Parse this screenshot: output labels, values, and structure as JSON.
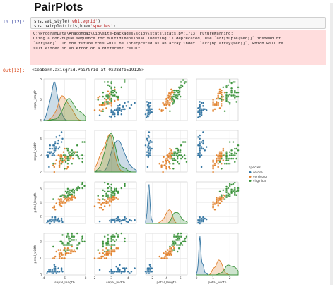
{
  "page": {
    "heading": "PairPlots"
  },
  "input_cell": {
    "prompt": "In [12]:",
    "lines": [
      {
        "pre": "sns.set_style(",
        "str": "'whitegrid'",
        "post": ")"
      },
      {
        "pre": "sns.pairplot(iris,hue=",
        "str": "'species'",
        "post": ")"
      }
    ]
  },
  "stderr": {
    "lines": [
      "C:\\ProgramData\\Anaconda3\\lib\\site-packages\\scipy\\stats\\stats.py:1713: FutureWarning:",
      "",
      "Using a non-tuple sequence for multidimensional indexing is deprecated; use `arr[tuple(seq)]` instead of",
      "`arr[seq]`. In the future this will be interpreted as an array index, `arr[np.array(seq)]`, which will re",
      "sult either in an error or a different result."
    ]
  },
  "output_cell": {
    "prompt": "Out[12]:",
    "repr": "<seaborn.axisgrid.PairGrid at 0x288fb519128>"
  },
  "colors": {
    "setosa": "#3274a1",
    "versicolor": "#e1812c",
    "virginica": "#3a923a",
    "grid": "#e6e6e6",
    "prompt_in": "#303f9f",
    "prompt_out": "#d84315",
    "stderr_bg": "#ffdddd"
  },
  "chart_data": {
    "type": "scatter",
    "variables": [
      "sepal_length",
      "sepal_width",
      "petal_length",
      "petal_width"
    ],
    "axis_labels": {
      "sepal_length": "sepal_length",
      "sepal_width": "sepal_width",
      "petal_length": "petal_length",
      "petal_width": "petal_width"
    },
    "ranges": {
      "sepal_length": [
        4,
        8
      ],
      "sepal_width": [
        2,
        4.5
      ],
      "petal_length": [
        1,
        7
      ],
      "petal_width": [
        0,
        2.5
      ]
    },
    "ticks": {
      "sepal_length": [
        "4",
        "6",
        "8"
      ],
      "sepal_width": [
        "2",
        "3",
        "4"
      ],
      "petal_length": [
        "2",
        "4",
        "6"
      ],
      "petal_width": [
        "0",
        "1",
        "2"
      ]
    },
    "diagonal": "kde",
    "grid": true,
    "legend": {
      "title": "species",
      "placement": "right",
      "entries": [
        "setosa",
        "versicolor",
        "virginica"
      ]
    },
    "series": [
      {
        "name": "setosa",
        "sepal_length": [
          5.1,
          4.9,
          4.7,
          4.6,
          5.0,
          5.4,
          4.6,
          5.0,
          4.4,
          4.9,
          5.4,
          4.8,
          4.8,
          4.3,
          5.8,
          5.7,
          5.4,
          5.1,
          5.7,
          5.1,
          5.4,
          5.1,
          4.6,
          5.1,
          4.8,
          5.0,
          5.0,
          5.2,
          5.2,
          4.7,
          4.8,
          5.4,
          5.2,
          5.5,
          4.9,
          5.0,
          5.5,
          4.9,
          4.4,
          5.1,
          5.0,
          4.5,
          4.4,
          5.0,
          5.1,
          4.8,
          5.1,
          4.6,
          5.3,
          5.0
        ],
        "sepal_width": [
          3.5,
          3.0,
          3.2,
          3.1,
          3.6,
          3.9,
          3.4,
          3.4,
          2.9,
          3.1,
          3.7,
          3.4,
          3.0,
          3.0,
          4.0,
          4.4,
          3.9,
          3.5,
          3.8,
          3.8,
          3.4,
          3.7,
          3.6,
          3.3,
          3.4,
          3.0,
          3.4,
          3.5,
          3.4,
          3.2,
          3.1,
          3.4,
          4.1,
          4.2,
          3.1,
          3.2,
          3.5,
          3.6,
          3.0,
          3.4,
          3.5,
          2.3,
          3.2,
          3.5,
          3.8,
          3.0,
          3.8,
          3.2,
          3.7,
          3.3
        ],
        "petal_length": [
          1.4,
          1.4,
          1.3,
          1.5,
          1.4,
          1.7,
          1.4,
          1.5,
          1.4,
          1.5,
          1.5,
          1.6,
          1.4,
          1.1,
          1.2,
          1.5,
          1.3,
          1.4,
          1.7,
          1.5,
          1.7,
          1.5,
          1.0,
          1.7,
          1.9,
          1.6,
          1.6,
          1.5,
          1.4,
          1.6,
          1.6,
          1.5,
          1.5,
          1.4,
          1.5,
          1.2,
          1.3,
          1.4,
          1.3,
          1.5,
          1.3,
          1.3,
          1.3,
          1.6,
          1.9,
          1.4,
          1.6,
          1.4,
          1.5,
          1.4
        ],
        "petal_width": [
          0.2,
          0.2,
          0.2,
          0.2,
          0.2,
          0.4,
          0.3,
          0.2,
          0.2,
          0.1,
          0.2,
          0.2,
          0.1,
          0.1,
          0.2,
          0.4,
          0.4,
          0.3,
          0.3,
          0.3,
          0.2,
          0.4,
          0.2,
          0.5,
          0.2,
          0.2,
          0.4,
          0.2,
          0.2,
          0.2,
          0.2,
          0.4,
          0.1,
          0.2,
          0.2,
          0.2,
          0.2,
          0.1,
          0.2,
          0.2,
          0.3,
          0.3,
          0.2,
          0.6,
          0.4,
          0.3,
          0.2,
          0.2,
          0.2,
          0.2
        ]
      },
      {
        "name": "versicolor",
        "sepal_length": [
          7.0,
          6.4,
          6.9,
          5.5,
          6.5,
          5.7,
          6.3,
          4.9,
          6.6,
          5.2,
          5.0,
          5.9,
          6.0,
          6.1,
          5.6,
          6.7,
          5.6,
          5.8,
          6.2,
          5.6,
          5.9,
          6.1,
          6.3,
          6.1,
          6.4,
          6.6,
          6.8,
          6.7,
          6.0,
          5.7,
          5.5,
          5.5,
          5.8,
          6.0,
          5.4,
          6.0,
          6.7,
          6.3,
          5.6,
          5.5,
          5.5,
          6.1,
          5.8,
          5.0,
          5.6,
          5.7,
          5.7,
          6.2,
          5.1,
          5.7
        ],
        "sepal_width": [
          3.2,
          3.2,
          3.1,
          2.3,
          2.8,
          2.8,
          3.3,
          2.4,
          2.9,
          2.7,
          2.0,
          3.0,
          2.2,
          2.9,
          2.9,
          3.1,
          3.0,
          2.7,
          2.2,
          2.5,
          3.2,
          2.8,
          2.5,
          2.8,
          2.9,
          3.0,
          2.8,
          3.0,
          2.9,
          2.6,
          2.4,
          2.4,
          2.7,
          2.7,
          3.0,
          3.4,
          3.1,
          2.3,
          3.0,
          2.5,
          2.6,
          3.0,
          2.6,
          2.3,
          2.7,
          3.0,
          2.9,
          2.9,
          2.5,
          2.8
        ],
        "petal_length": [
          4.7,
          4.5,
          4.9,
          4.0,
          4.6,
          4.5,
          4.7,
          3.3,
          4.6,
          3.9,
          3.5,
          4.2,
          4.0,
          4.7,
          3.6,
          4.4,
          4.5,
          4.1,
          4.5,
          3.9,
          4.8,
          4.0,
          4.9,
          4.7,
          4.3,
          4.4,
          4.8,
          5.0,
          4.5,
          3.5,
          3.8,
          3.7,
          3.9,
          5.1,
          4.5,
          4.5,
          4.7,
          4.4,
          4.1,
          4.0,
          4.4,
          4.6,
          4.0,
          3.3,
          4.2,
          4.2,
          4.2,
          4.3,
          3.0,
          4.1
        ],
        "petal_width": [
          1.4,
          1.5,
          1.5,
          1.3,
          1.5,
          1.3,
          1.6,
          1.0,
          1.3,
          1.4,
          1.0,
          1.5,
          1.0,
          1.4,
          1.3,
          1.4,
          1.5,
          1.0,
          1.5,
          1.1,
          1.8,
          1.3,
          1.5,
          1.2,
          1.3,
          1.4,
          1.4,
          1.7,
          1.5,
          1.0,
          1.1,
          1.0,
          1.2,
          1.6,
          1.5,
          1.6,
          1.5,
          1.3,
          1.3,
          1.3,
          1.2,
          1.4,
          1.2,
          1.0,
          1.3,
          1.2,
          1.3,
          1.3,
          1.1,
          1.3
        ]
      },
      {
        "name": "virginica",
        "sepal_length": [
          6.3,
          5.8,
          7.1,
          6.3,
          6.5,
          7.6,
          4.9,
          7.3,
          6.7,
          7.2,
          6.5,
          6.4,
          6.8,
          5.7,
          5.8,
          6.4,
          6.5,
          7.7,
          7.7,
          6.0,
          6.9,
          5.6,
          7.7,
          6.3,
          6.7,
          7.2,
          6.2,
          6.1,
          6.4,
          7.2,
          7.4,
          7.9,
          6.4,
          6.3,
          6.1,
          7.7,
          6.3,
          6.4,
          6.0,
          6.9,
          6.7,
          6.9,
          5.8,
          6.8,
          6.7,
          6.7,
          6.3,
          6.5,
          6.2,
          5.9
        ],
        "sepal_width": [
          3.3,
          2.7,
          3.0,
          2.9,
          3.0,
          3.0,
          2.5,
          2.9,
          2.5,
          3.6,
          3.2,
          2.7,
          3.0,
          2.5,
          2.8,
          3.2,
          3.0,
          3.8,
          2.6,
          2.2,
          3.2,
          2.8,
          2.8,
          2.7,
          3.3,
          3.2,
          2.8,
          3.0,
          2.8,
          3.0,
          2.8,
          3.8,
          2.8,
          2.8,
          2.6,
          3.0,
          3.4,
          3.1,
          3.0,
          3.1,
          3.1,
          3.1,
          2.7,
          3.2,
          3.3,
          3.0,
          2.5,
          3.0,
          3.4,
          3.0
        ],
        "petal_length": [
          6.0,
          5.1,
          5.9,
          5.6,
          5.8,
          6.6,
          4.5,
          6.3,
          5.8,
          6.1,
          5.1,
          5.3,
          5.5,
          5.0,
          5.1,
          5.3,
          5.5,
          6.7,
          6.9,
          5.0,
          5.7,
          4.9,
          6.7,
          4.9,
          5.7,
          6.0,
          4.8,
          4.9,
          5.6,
          5.8,
          6.1,
          6.4,
          5.6,
          5.1,
          5.6,
          6.1,
          5.6,
          5.5,
          4.8,
          5.4,
          5.6,
          5.1,
          5.1,
          5.9,
          5.7,
          5.2,
          5.0,
          5.2,
          5.4,
          5.1
        ],
        "petal_width": [
          2.5,
          1.9,
          2.1,
          1.8,
          2.2,
          2.1,
          1.7,
          1.8,
          1.8,
          2.5,
          2.0,
          1.9,
          2.1,
          2.0,
          2.4,
          2.3,
          1.8,
          2.2,
          2.3,
          1.5,
          2.3,
          2.0,
          2.0,
          1.8,
          2.1,
          1.8,
          1.8,
          1.8,
          2.1,
          1.6,
          1.9,
          2.0,
          2.2,
          1.5,
          1.4,
          2.3,
          2.4,
          1.8,
          1.8,
          2.1,
          2.4,
          2.3,
          1.9,
          2.3,
          2.5,
          2.3,
          1.9,
          2.0,
          2.3,
          1.8
        ]
      }
    ]
  }
}
